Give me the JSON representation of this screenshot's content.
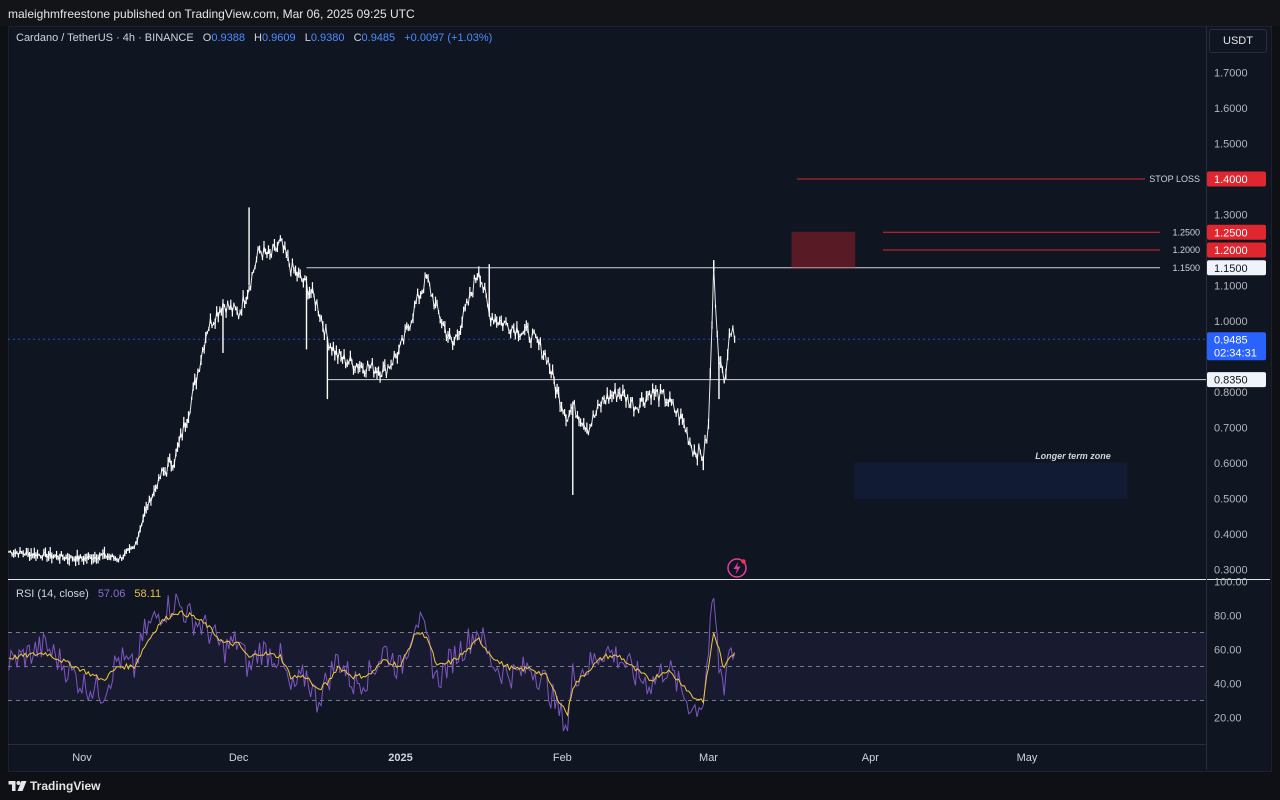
{
  "header": {
    "publisher_text": "maleighmfreestone published on TradingView.com, Mar 06, 2025 09:25 UTC"
  },
  "legend": {
    "symbol": "Cardano / TetherUS · 4h · BINANCE",
    "o_label": "O",
    "o_value": "0.9388",
    "h_label": "H",
    "h_value": "0.9609",
    "l_label": "L",
    "l_value": "0.9380",
    "c_label": "C",
    "c_value": "0.9485",
    "change": "+0.0097 (+1.03%)"
  },
  "currency_button": "USDT",
  "price_axis": {
    "ticks": [
      "1.7000",
      "1.6000",
      "1.5000",
      "1.3000",
      "1.1000",
      "1.0000",
      "0.8000",
      "0.7000",
      "0.6000",
      "0.5000",
      "0.4000",
      "0.3000"
    ]
  },
  "price_labels": {
    "stop_loss_text": "STOP LOSS",
    "stop_loss_value": "1.4000",
    "level_1250_small": "1.2500",
    "level_1250_tag": "1.2500",
    "level_1200_small": "1.2000",
    "level_1200_tag": "1.2000",
    "level_1150_small": "1.1500",
    "level_1150_tag": "1.1500",
    "current_price": "0.9485",
    "countdown": "02:34:31",
    "support_tag": "0.8350"
  },
  "annotations": {
    "longer_term_zone": "Longer term zone"
  },
  "rsi": {
    "label": "RSI (14, close)",
    "value1": "57.06",
    "value2": "58.11",
    "ticks": [
      "100.00",
      "80.00",
      "60.00",
      "40.00",
      "20.00"
    ]
  },
  "time_axis": {
    "labels": [
      "Nov",
      "Dec",
      "2025",
      "Feb",
      "Mar",
      "Apr",
      "May"
    ]
  },
  "footer": {
    "brand": "TradingView"
  },
  "colors": {
    "background": "#0f1521",
    "candle": "#ffffff",
    "accent_blue": "#2962ff",
    "stop_loss_red": "#e0262f",
    "rsi_line": "#7e57c2",
    "rsi_ma": "#f0c93c"
  },
  "chart_data": [
    {
      "type": "line",
      "title": "Cardano / TetherUS · 4h · BINANCE",
      "x_labels": [
        "Nov",
        "Dec",
        "2025",
        "Feb",
        "Mar",
        "Apr",
        "May"
      ],
      "x": [
        "Oct 18",
        "Oct 25",
        "Nov 1",
        "Nov 5",
        "Nov 8",
        "Nov 11",
        "Nov 13",
        "Nov 16",
        "Nov 19",
        "Nov 22",
        "Nov 25",
        "Nov 28",
        "Dec 1",
        "Dec 3",
        "Dec 5",
        "Dec 7",
        "Dec 9",
        "Dec 11",
        "Dec 14",
        "Dec 16",
        "Dec 18",
        "Dec 20",
        "Dec 23",
        "Dec 26",
        "Dec 29",
        "Jan 1",
        "Jan 4",
        "Jan 6",
        "Jan 8",
        "Jan 11",
        "Jan 14",
        "Jan 16",
        "Jan 18",
        "Jan 20",
        "Jan 23",
        "Jan 26",
        "Jan 29",
        "Jan 31",
        "Feb 2",
        "Feb 3",
        "Feb 6",
        "Feb 9",
        "Feb 12",
        "Feb 15",
        "Feb 18",
        "Feb 21",
        "Feb 24",
        "Feb 26",
        "Feb 28",
        "Mar 1",
        "Mar 2",
        "Mar 3",
        "Mar 4",
        "Mar 5",
        "Mar 6"
      ],
      "close": [
        0.35,
        0.34,
        0.33,
        0.34,
        0.33,
        0.36,
        0.46,
        0.56,
        0.62,
        0.78,
        0.98,
        1.05,
        1.02,
        1.1,
        1.2,
        1.18,
        1.22,
        1.15,
        1.1,
        1.05,
        0.95,
        0.9,
        0.88,
        0.87,
        0.86,
        0.92,
        1.05,
        1.12,
        1.03,
        0.93,
        1.05,
        1.15,
        1.02,
        1.0,
        0.98,
        0.96,
        0.9,
        0.8,
        0.73,
        0.76,
        0.7,
        0.78,
        0.8,
        0.76,
        0.8,
        0.78,
        0.72,
        0.64,
        0.62,
        0.7,
        1.14,
        0.9,
        0.82,
        0.98,
        0.9485
      ],
      "low_wicks": [
        {
          "x": "Nov 28",
          "low": 0.91
        },
        {
          "x": "Dec 14",
          "low": 0.92
        },
        {
          "x": "Dec 18",
          "low": 0.78
        },
        {
          "x": "Feb 3",
          "low": 0.51
        },
        {
          "x": "Feb 28",
          "low": 0.58
        },
        {
          "x": "Mar 3",
          "low": 0.78
        }
      ],
      "high_wicks": [
        {
          "x": "Dec 3",
          "high": 1.32
        },
        {
          "x": "Jan 18",
          "high": 1.16
        },
        {
          "x": "Mar 2",
          "high": 1.17
        }
      ],
      "levels": [
        {
          "label": "STOP LOSS",
          "value": 1.4
        },
        {
          "value": 1.25
        },
        {
          "value": 1.2
        },
        {
          "value": 1.15
        },
        {
          "value": 0.835
        }
      ],
      "zones": [
        {
          "name": "entry",
          "from": 1.15,
          "to": 1.25,
          "x_from": "Mar 17",
          "x_to": "Mar 29",
          "color": "#e0262f"
        },
        {
          "name": "Longer term zone",
          "from": 0.5,
          "to": 0.6,
          "x_from": "Mar 29",
          "x_to": "May 1",
          "color": "#2962ff"
        }
      ],
      "ylim": [
        0.27,
        1.8
      ],
      "ylabel": "USDT"
    },
    {
      "type": "line",
      "title": "RSI (14, close)",
      "series": [
        {
          "name": "RSI",
          "values": [
            52,
            62,
            40,
            35,
            55,
            48,
            70,
            82,
            88,
            78,
            72,
            60,
            65,
            48,
            60,
            58,
            55,
            35,
            45,
            30,
            42,
            55,
            40,
            45,
            60,
            48,
            80,
            65,
            42,
            55,
            65,
            72,
            55,
            48,
            45,
            50,
            40,
            25,
            15,
            45,
            50,
            60,
            55,
            45,
            40,
            50,
            35,
            25,
            30,
            60,
            90,
            50,
            40,
            62,
            57.06
          ]
        },
        {
          "name": "MA",
          "values": [
            55,
            58,
            48,
            42,
            50,
            50,
            62,
            76,
            82,
            80,
            74,
            64,
            63,
            55,
            58,
            57,
            56,
            44,
            44,
            36,
            40,
            50,
            44,
            45,
            54,
            50,
            70,
            68,
            50,
            53,
            60,
            66,
            58,
            52,
            48,
            49,
            44,
            32,
            22,
            38,
            48,
            56,
            56,
            48,
            42,
            48,
            40,
            32,
            30,
            50,
            70,
            60,
            48,
            56,
            58.11
          ]
        }
      ],
      "overbought": 70,
      "middle": 50,
      "oversold": 30,
      "ylim": [
        10,
        100
      ]
    }
  ]
}
